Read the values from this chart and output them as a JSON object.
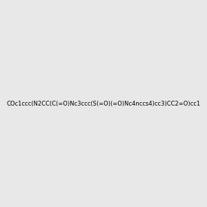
{
  "smiles": "COc1ccc(N2CC(C(=O)Nc3ccc(S(=O)(=O)Nc4nccs4)cc3)CC2=O)cc1",
  "image_size": 300,
  "background_color": "#e8e8e8",
  "title": ""
}
